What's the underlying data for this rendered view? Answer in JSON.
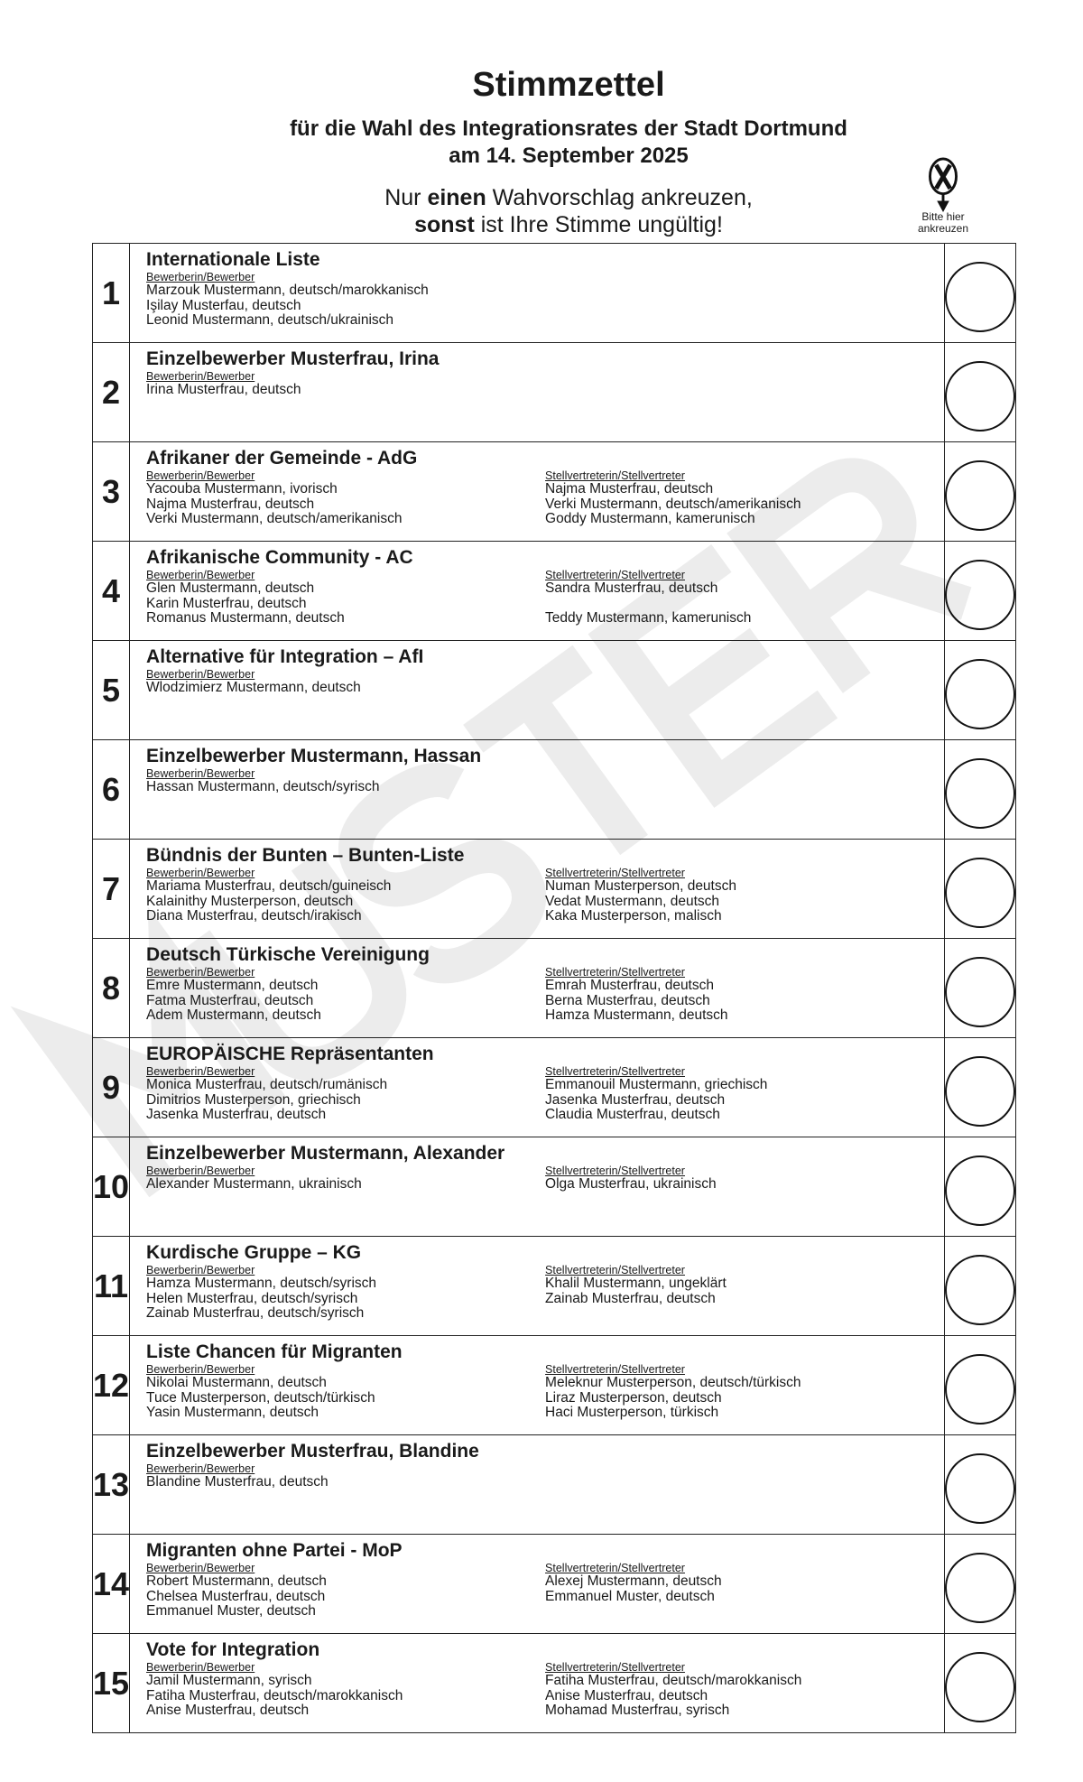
{
  "header": {
    "title": "Stimmzettel",
    "subtitle_line1": "für die Wahl des Integrationsrates der Stadt Dortmund",
    "subtitle_line2": "am 14. September 2025",
    "instruction_pre": "Nur ",
    "instruction_bold1": "einen",
    "instruction_post1": " Wahvorschlag ankreuzen,",
    "instruction_bold2": "sonst",
    "instruction_post2": " ist Ihre Stimme ungültig!",
    "hint_line1": "Bitte hier",
    "hint_line2": "ankreuzen",
    "hint_icon": "circled-x-arrow-down-icon"
  },
  "watermark": "MUSTER",
  "labels": {
    "candidates": "Bewerberin/Bewerber",
    "deputies": "Stellvertreterin/Stellvertreter"
  },
  "entries": [
    {
      "number": "1",
      "party": "Internationale Liste",
      "candidates": [
        "Marzouk Mustermann, deutsch/marokkanisch",
        "Işilay Musterfau, deutsch",
        "Leonid Mustermann, deutsch/ukrainisch"
      ],
      "deputies": []
    },
    {
      "number": "2",
      "party": "Einzelbewerber Musterfrau, Irina",
      "candidates": [
        "Irina Musterfrau, deutsch"
      ],
      "deputies": []
    },
    {
      "number": "3",
      "party": "Afrikaner der Gemeinde - AdG",
      "candidates": [
        "Yacouba Mustermann, ivorisch",
        "Najma Musterfrau, deutsch",
        "Verki Mustermann, deutsch/amerikanisch"
      ],
      "deputies": [
        "Najma Musterfrau, deutsch",
        "Verki Mustermann, deutsch/amerikanisch",
        "Goddy Mustermann, kamerunisch"
      ]
    },
    {
      "number": "4",
      "party": "Afrikanische Community - AC",
      "candidates": [
        "Glen Mustermann, deutsch",
        "Karin Musterfrau, deutsch",
        "Romanus Mustermann, deutsch"
      ],
      "deputies": [
        "Sandra Musterfrau, deutsch",
        "",
        "Teddy Mustermann, kamerunisch"
      ]
    },
    {
      "number": "5",
      "party": "Alternative für Integration – AfI",
      "candidates": [
        "Wlodzimierz Mustermann, deutsch"
      ],
      "deputies": []
    },
    {
      "number": "6",
      "party": "Einzelbewerber Mustermann, Hassan",
      "candidates": [
        "Hassan Mustermann, deutsch/syrisch"
      ],
      "deputies": []
    },
    {
      "number": "7",
      "party": "Bündnis der Bunten – Bunten-Liste",
      "candidates": [
        "Mariama Musterfrau, deutsch/guineisch",
        "Kalainithy Musterperson, deutsch",
        "Diana Musterfrau, deutsch/irakisch"
      ],
      "deputies": [
        "Numan Musterperson, deutsch",
        "Vedat Mustermann, deutsch",
        "Kaka Musterperson, malisch"
      ]
    },
    {
      "number": "8",
      "party": "Deutsch Türkische Vereinigung",
      "candidates": [
        "Emre Mustermann, deutsch",
        "Fatma Musterfrau, deutsch",
        "Adem Mustermann, deutsch"
      ],
      "deputies": [
        "Emrah Musterfrau, deutsch",
        "Berna Musterfrau, deutsch",
        "Hamza Mustermann, deutsch"
      ]
    },
    {
      "number": "9",
      "party": "EUROPÄISCHE Repräsentanten",
      "candidates": [
        "Monica Musterfrau, deutsch/rumänisch",
        "Dimitrios Musterperson, griechisch",
        "Jasenka Musterfrau, deutsch"
      ],
      "deputies": [
        "Emmanouil Mustermann, griechisch",
        "Jasenka Musterfrau, deutsch",
        "Claudia Musterfrau, deutsch"
      ]
    },
    {
      "number": "10",
      "party": "Einzelbewerber Mustermann, Alexander",
      "candidates": [
        "Alexander Mustermann, ukrainisch"
      ],
      "deputies": [
        "Olga Musterfrau, ukrainisch"
      ]
    },
    {
      "number": "11",
      "party": "Kurdische Gruppe – KG",
      "candidates": [
        "Hamza Mustermann, deutsch/syrisch",
        "Helen Musterfrau, deutsch/syrisch",
        "Zainab Musterfrau, deutsch/syrisch"
      ],
      "deputies": [
        "Khalil Mustermann, ungeklärt",
        "Zainab Musterfrau, deutsch"
      ]
    },
    {
      "number": "12",
      "party": "Liste Chancen für Migranten",
      "candidates": [
        "Nikolai Mustermann, deutsch",
        "Tuce Musterperson, deutsch/türkisch",
        "Yasin Mustermann, deutsch"
      ],
      "deputies": [
        "Meleknur Musterperson, deutsch/türkisch",
        "Liraz Musterperson, deutsch",
        "Haci Musterperson, türkisch"
      ]
    },
    {
      "number": "13",
      "party": "Einzelbewerber Musterfrau, Blandine",
      "candidates": [
        "Blandine Musterfrau, deutsch"
      ],
      "deputies": []
    },
    {
      "number": "14",
      "party": "Migranten ohne Partei - MoP",
      "candidates": [
        "Robert Mustermann, deutsch",
        "Chelsea Musterfrau, deutsch",
        "Emmanuel Muster, deutsch"
      ],
      "deputies": [
        "Alexej Mustermann, deutsch",
        "Emmanuel Muster, deutsch"
      ]
    },
    {
      "number": "15",
      "party": "Vote for Integration",
      "candidates": [
        "Jamil Mustermann, syrisch",
        "Fatiha Musterfrau, deutsch/marokkanisch",
        "Anise Musterfrau, deutsch"
      ],
      "deputies": [
        "Fatiha Musterfrau, deutsch/marokkanisch",
        "Anise Musterfrau, deutsch",
        "Mohamad Musterfrau, syrisch"
      ]
    }
  ]
}
